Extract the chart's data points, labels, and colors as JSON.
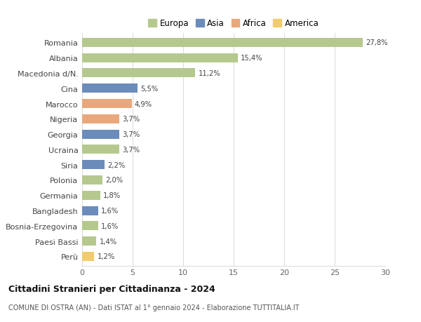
{
  "countries": [
    "Romania",
    "Albania",
    "Macedonia d/N.",
    "Cina",
    "Marocco",
    "Nigeria",
    "Georgia",
    "Ucraina",
    "Siria",
    "Polonia",
    "Germania",
    "Bangladesh",
    "Bosnia-Erzegovina",
    "Paesi Bassi",
    "Perù"
  ],
  "values": [
    27.8,
    15.4,
    11.2,
    5.5,
    4.9,
    3.7,
    3.7,
    3.7,
    2.2,
    2.0,
    1.8,
    1.6,
    1.6,
    1.4,
    1.2
  ],
  "labels": [
    "27,8%",
    "15,4%",
    "11,2%",
    "5,5%",
    "4,9%",
    "3,7%",
    "3,7%",
    "3,7%",
    "2,2%",
    "2,0%",
    "1,8%",
    "1,6%",
    "1,6%",
    "1,4%",
    "1,2%"
  ],
  "categories": [
    "Europa",
    "Europa",
    "Europa",
    "Asia",
    "Africa",
    "Africa",
    "Asia",
    "Europa",
    "Asia",
    "Europa",
    "Europa",
    "Asia",
    "Europa",
    "Europa",
    "America"
  ],
  "colors": {
    "Europa": "#b5c98e",
    "Asia": "#6b8cba",
    "Africa": "#e8a87c",
    "America": "#f0cc6e"
  },
  "legend_order": [
    "Europa",
    "Asia",
    "Africa",
    "America"
  ],
  "title": "Cittadini Stranieri per Cittadinanza - 2024",
  "subtitle": "COMUNE DI OSTRA (AN) - Dati ISTAT al 1° gennaio 2024 - Elaborazione TUTTITALIA.IT",
  "xlim": [
    0,
    30
  ],
  "xticks": [
    0,
    5,
    10,
    15,
    20,
    25,
    30
  ],
  "background_color": "#ffffff",
  "grid_color": "#dddddd",
  "bar_height": 0.6
}
